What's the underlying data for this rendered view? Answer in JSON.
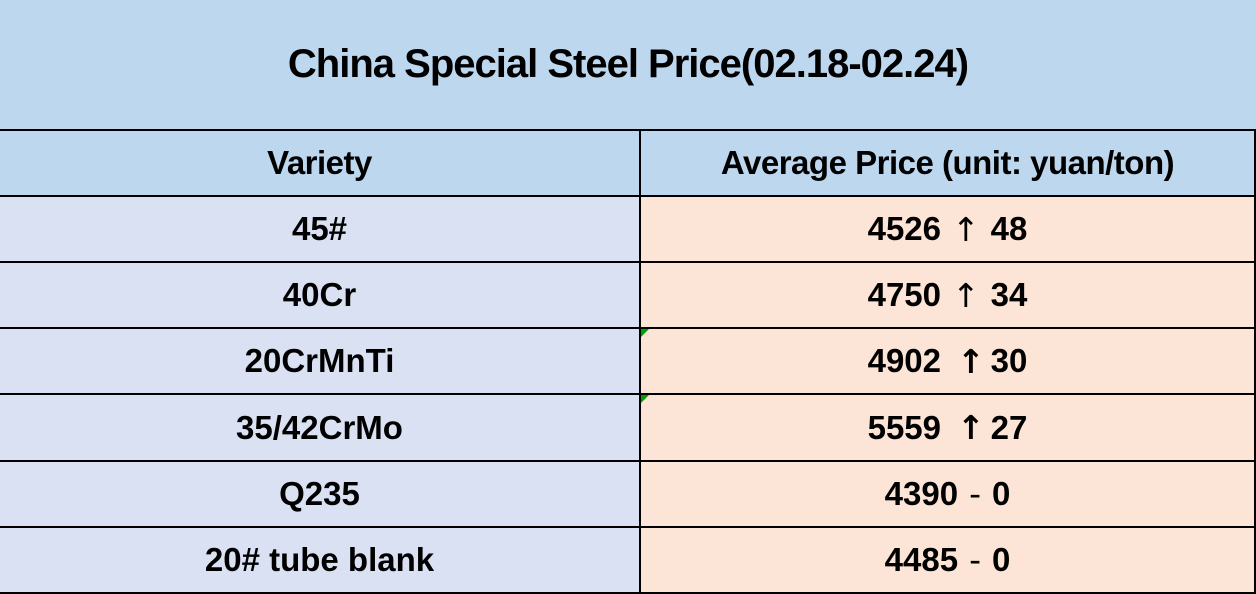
{
  "title": "China Special Steel Price(02.18-02.24)",
  "columns": {
    "variety": "Variety",
    "price": "Average Price (unit: yuan/ton)"
  },
  "rows": [
    {
      "variety": "45#",
      "price_value": "4526",
      "arrow": "↑",
      "change": "48"
    },
    {
      "variety": "40Cr",
      "price_value": "4750",
      "arrow": "↑",
      "change": "34"
    },
    {
      "variety": "20CrMnTi",
      "price_value": "4902",
      "arrow": "↑",
      "change": "30"
    },
    {
      "variety": "35/42CrMo",
      "price_value": "5559",
      "arrow": "↑",
      "change": "27"
    },
    {
      "variety": "Q235",
      "price_value": "4390",
      "arrow": "-",
      "change": "0"
    },
    {
      "variety": "20# tube blank",
      "price_value": "4485",
      "arrow": "-",
      "change": "0"
    }
  ],
  "colors": {
    "header_blue": "#BDD7EE",
    "variety_lavender": "#DAE1F3",
    "price_peach": "#FCE4D6",
    "border_black": "#000000",
    "flag_green": "#00A000"
  },
  "chart_data": {
    "type": "table",
    "title": "China Special Steel Price(02.18-02.24)",
    "columns": [
      "Variety",
      "Average Price (unit: yuan/ton)"
    ],
    "rows": [
      [
        "45#",
        "4526 ↑ 48"
      ],
      [
        "40Cr",
        "4750 ↑ 34"
      ],
      [
        "20CrMnTi",
        "4902 ↑30"
      ],
      [
        "35/42CrMo",
        "5559 ↑27"
      ],
      [
        "Q235",
        "4390 - 0"
      ],
      [
        "20# tube blank",
        "4485 - 0"
      ]
    ],
    "notes": {
      "unit": "yuan/ton",
      "period": "02.18-02.24",
      "price_direction": [
        "up 48",
        "up 34",
        "up 30",
        "up 27",
        "flat 0",
        "flat 0"
      ],
      "text_flag_rows": [
        "20CrMnTi",
        "35/42CrMo"
      ]
    }
  }
}
